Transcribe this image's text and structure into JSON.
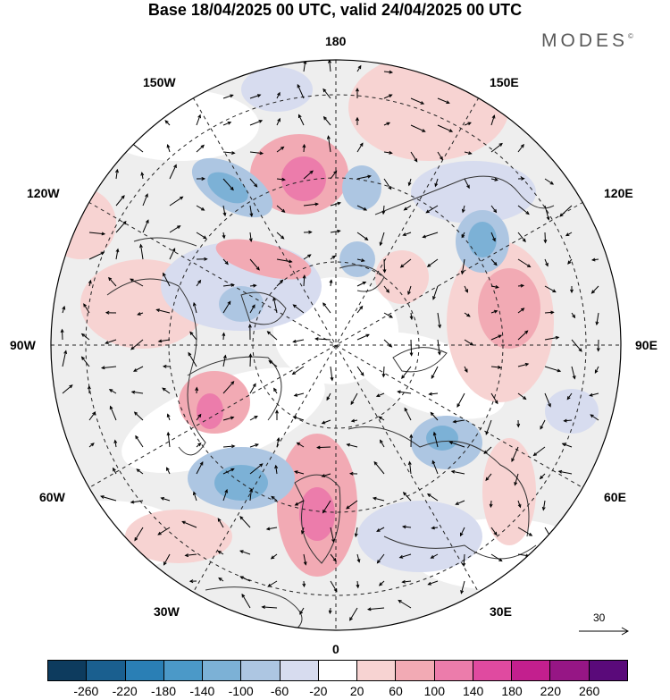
{
  "title": "Base 18/04/2025 00 UTC, valid 24/04/2025 00 UTC",
  "brand": "MODES",
  "brand_mark": "©",
  "longitude_labels": {
    "n180": "180",
    "w150": "150W",
    "e150": "150E",
    "w120": "120W",
    "e120": "120E",
    "w90": "90W",
    "e90": "90E",
    "w60": "60W",
    "e60": "60E",
    "w30": "30W",
    "e30": "30E",
    "s0": "0"
  },
  "reference_vector": {
    "label": "30"
  },
  "colorbar": {
    "colors": [
      "#0d3b5e",
      "#1a5f8f",
      "#2a7fb5",
      "#4b99c8",
      "#7cb1d6",
      "#adc6e2",
      "#d7dcef",
      "#ffffff",
      "#f7d3d2",
      "#f2aab4",
      "#ec7cab",
      "#e04aa0",
      "#c31f8e",
      "#961685",
      "#5a0a7a"
    ],
    "ticks": [
      "-260",
      "-220",
      "-180",
      "-140",
      "-100",
      "-60",
      "-20",
      "20",
      "60",
      "100",
      "140",
      "180",
      "220",
      "260"
    ]
  }
}
